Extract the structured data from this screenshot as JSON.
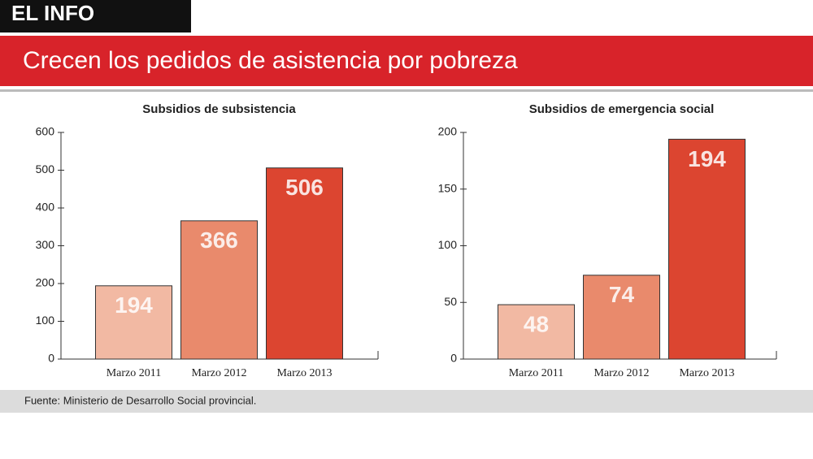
{
  "header": {
    "section": "EL INFO",
    "title": "Crecen los pedidos de asistencia por pobreza"
  },
  "source": "Fuente: Ministerio de Desarrollo Social provincial.",
  "chart_data": [
    {
      "type": "bar",
      "title": "Subsidios de subsistencia",
      "categories": [
        "Marzo 2011",
        "Marzo 2012",
        "Marzo 2013"
      ],
      "values": [
        194,
        366,
        506
      ],
      "colors": [
        "#f2b9a3",
        "#e98a6c",
        "#dc4530"
      ],
      "ylim": [
        0,
        600
      ],
      "yticks": [
        0,
        100,
        200,
        300,
        400,
        500,
        600
      ]
    },
    {
      "type": "bar",
      "title": "Subsidios de emergencia social",
      "categories": [
        "Marzo 2011",
        "Marzo 2012",
        "Marzo 2013"
      ],
      "values": [
        48,
        74,
        194
      ],
      "colors": [
        "#f2b9a3",
        "#e98a6c",
        "#dc4530"
      ],
      "ylim": [
        0,
        200
      ],
      "yticks": [
        0,
        50,
        100,
        150,
        200
      ]
    }
  ]
}
